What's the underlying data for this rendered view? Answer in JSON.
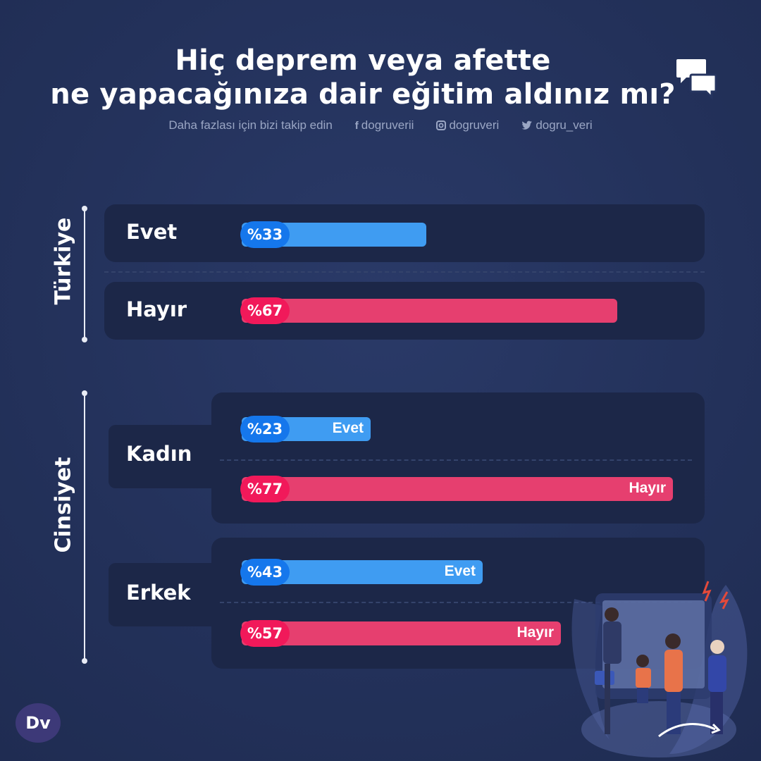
{
  "title": {
    "line1": "Hiç deprem veya afette",
    "line2": "ne yapacağınıza dair eğitim aldınız mı?"
  },
  "social": {
    "follow_text": "Daha fazlası için bizi takip edin",
    "facebook": "dogruverii",
    "instagram": "dogruveri",
    "twitter": "dogru_veri"
  },
  "logo_text": "Dv",
  "colors": {
    "yes": "#3f9cf2",
    "no": "#e63f6f",
    "background": "#25345f",
    "panel": "#1c2748"
  },
  "chart_data": [
    {
      "type": "bar",
      "group": "Türkiye",
      "categories": [
        "Evet",
        "Hayır"
      ],
      "values": [
        33,
        67
      ],
      "value_prefix": "%",
      "labels": [
        "%33",
        "%67"
      ]
    },
    {
      "type": "bar",
      "group": "Cinsiyet",
      "categories": [
        "Kadın",
        "Erkek"
      ],
      "series": [
        {
          "name": "Evet",
          "values": [
            23,
            43
          ],
          "labels": [
            "%23",
            "%43"
          ]
        },
        {
          "name": "Hayır",
          "values": [
            77,
            57
          ],
          "labels": [
            "%77",
            "%57"
          ]
        }
      ],
      "value_prefix": "%"
    }
  ]
}
